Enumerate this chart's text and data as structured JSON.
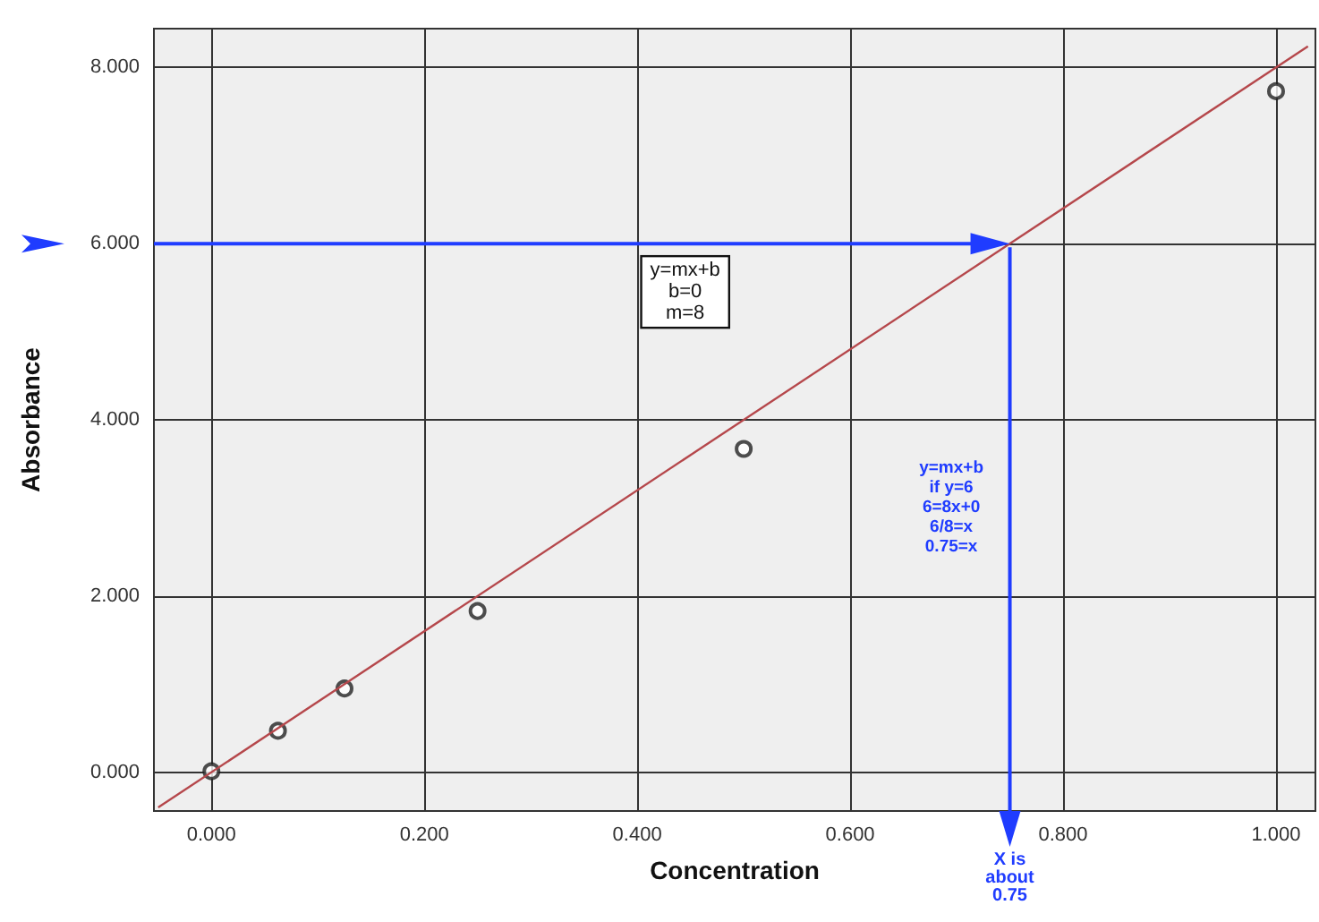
{
  "chart_data": {
    "type": "scatter",
    "xlabel": "Concentration",
    "ylabel": "Absorbance",
    "xlim": [
      -0.054,
      1.037
    ],
    "ylim": [
      -0.44,
      8.44
    ],
    "xticks": [
      {
        "value": 0,
        "label": "0.000"
      },
      {
        "value": 0.2,
        "label": "0.200"
      },
      {
        "value": 0.4,
        "label": "0.400"
      },
      {
        "value": 0.6,
        "label": "0.600"
      },
      {
        "value": 0.8,
        "label": "0.800"
      },
      {
        "value": 1,
        "label": "1.000"
      }
    ],
    "yticks": [
      {
        "value": 0,
        "label": "0.000"
      },
      {
        "value": 2,
        "label": "2.000"
      },
      {
        "value": 4,
        "label": "4.000"
      },
      {
        "value": 6,
        "label": "6.000"
      },
      {
        "value": 8,
        "label": "8.000"
      }
    ],
    "grid": true,
    "series": [
      {
        "color": "#222222",
        "marker": "circle",
        "x": [
          0,
          0.0625,
          0.125,
          0.25,
          0.5,
          1.0
        ],
        "values": [
          0.01,
          0.47,
          0.95,
          1.83,
          3.67,
          7.73
        ]
      },
      {
        "type": "line",
        "color": "#b5474b",
        "marker": "none",
        "line_style": "solid",
        "x": [
          -0.05,
          1.03
        ],
        "values": [
          -0.4,
          8.24
        ]
      }
    ],
    "annotations": [
      "y=mx+b\nb=0\nm=8",
      "y=mx+b\nif y=6\n6=8x+0\n6/8=x\n0.75=x"
    ],
    "ref_lines": [
      {
        "axis": "y",
        "value": 6,
        "color": "#1f3cff"
      },
      {
        "axis": "x",
        "value": 0.75,
        "label": "X is\nabout\n0.75",
        "color": "#1f3cff"
      }
    ]
  }
}
